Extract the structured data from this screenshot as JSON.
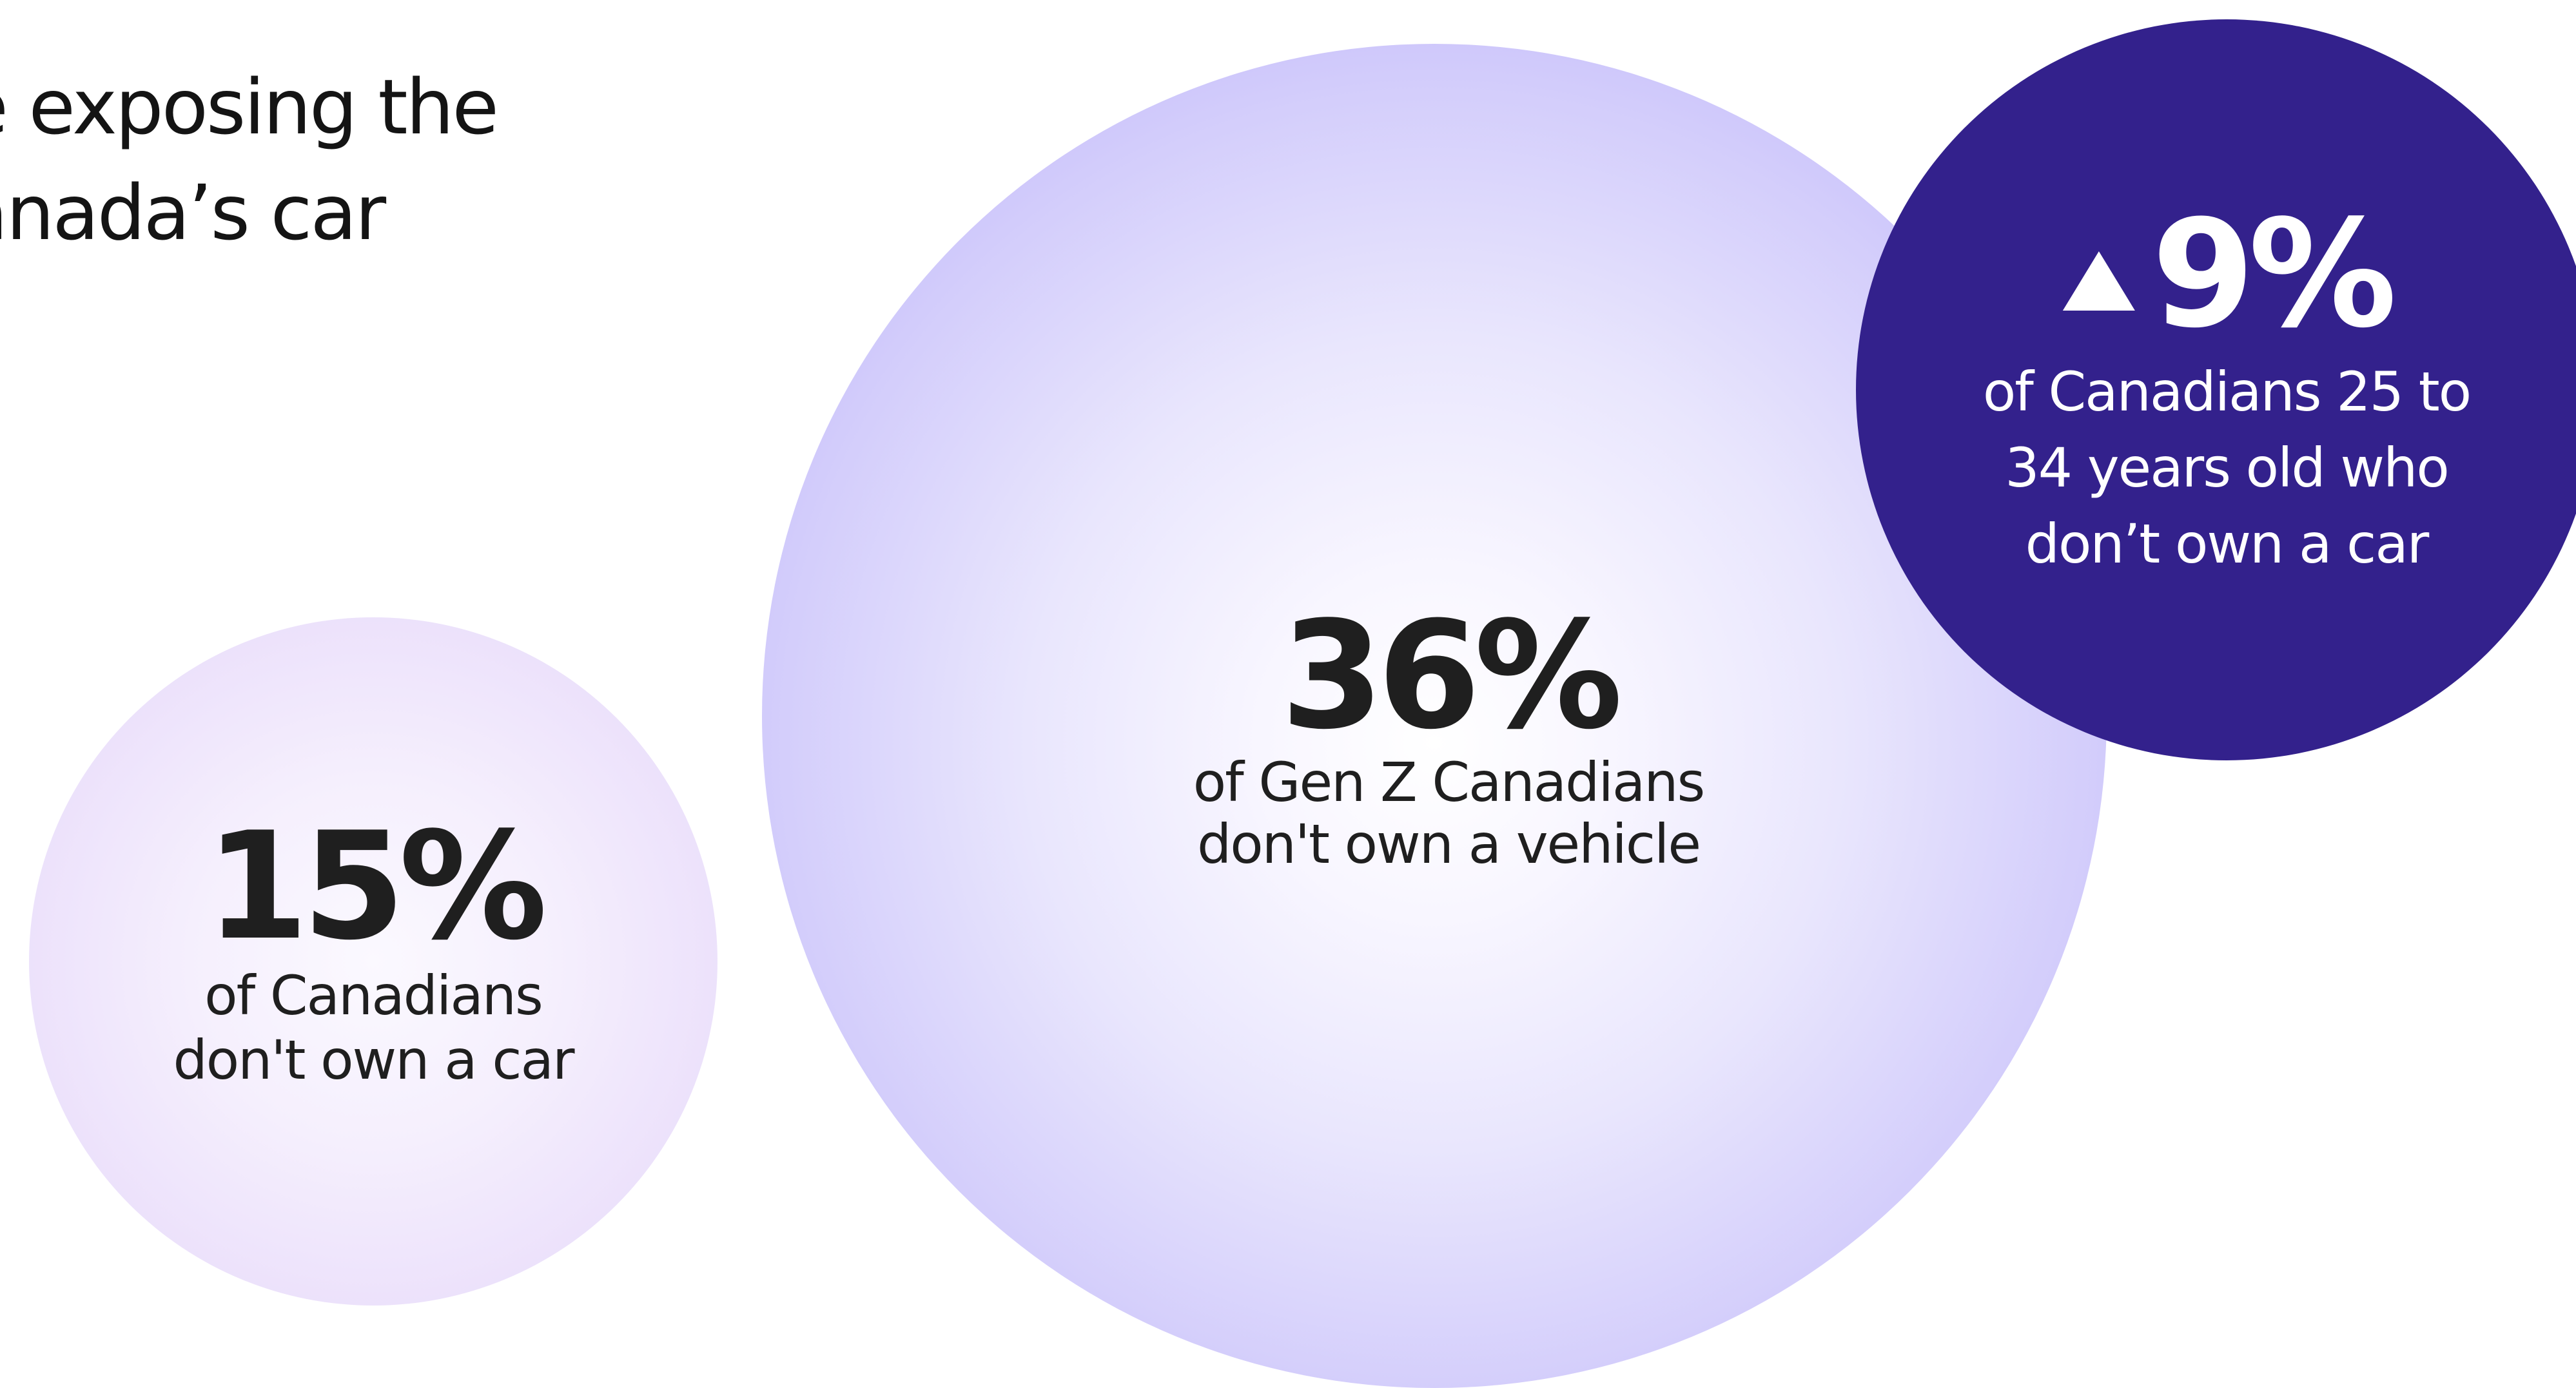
{
  "headline": {
    "line1": "e exposing the",
    "line2": "anada’s car"
  },
  "stats": [
    {
      "value": "15%",
      "label_line1": "of Canadians",
      "label_line2": "don't own a car"
    },
    {
      "value": "36%",
      "label_line1": "of Gen Z Canadians",
      "label_line2": "don't own a vehicle"
    },
    {
      "icon": "triangle-up-icon",
      "value": "9%",
      "label_line1": "of Canadians 25 to",
      "label_line2": "34 years old who",
      "label_line3": "don’t own a car"
    }
  ],
  "colors": {
    "small_circle": "#ece1fb",
    "large_circle": "#b2a6f9",
    "dark_circle": "#33218c",
    "dark_text": "#1f1f1f",
    "light_text": "#ffffff"
  }
}
